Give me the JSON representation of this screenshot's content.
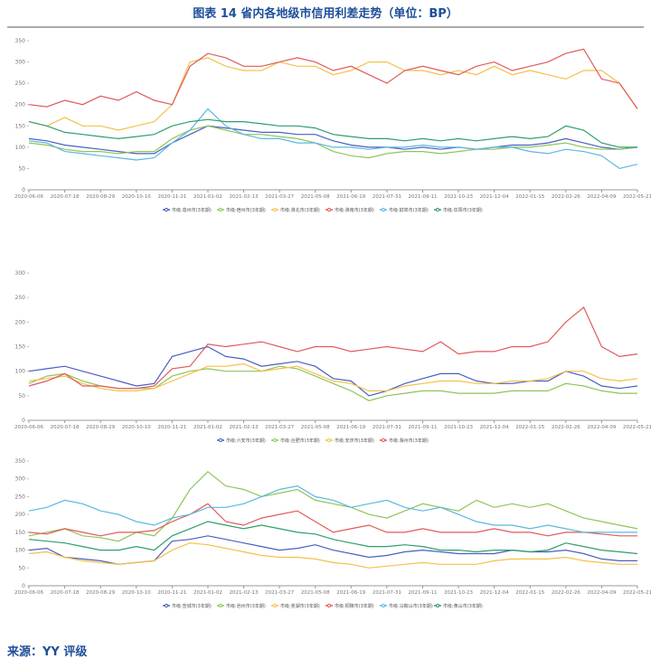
{
  "title": "图表 14 省内各地级市信用利差走势（单位：BP）",
  "source": "来源：YY 评级",
  "chart_data": [
    {
      "type": "line",
      "x": [
        "2020-06-06",
        "2020-06-27",
        "2020-07-18",
        "2020-08-08",
        "2020-08-29",
        "2020-09-19",
        "2020-10-10",
        "2020-10-31",
        "2020-11-21",
        "2020-12-12",
        "2021-01-02",
        "2021-01-23",
        "2021-02-13",
        "2021-03-06",
        "2021-03-27",
        "2021-04-17",
        "2021-05-08",
        "2021-05-29",
        "2021-06-19",
        "2021-07-10",
        "2021-07-31",
        "2021-08-21",
        "2021-09-11",
        "2021-10-02",
        "2021-10-23",
        "2021-11-13",
        "2021-12-04",
        "2021-12-25",
        "2022-01-15",
        "2022-02-05",
        "2022-02-26",
        "2022-03-19",
        "2022-04-09",
        "2022-04-30",
        "2022-05-21"
      ],
      "xticks": [
        "2020-06-06",
        "2020-07-18",
        "2020-08-29",
        "2020-10-10",
        "2020-11-21",
        "2021-01-02",
        "2021-02-13",
        "2021-03-27",
        "2021-05-08",
        "2021-06-19",
        "2021-07-31",
        "2021-09-11",
        "2021-10-23",
        "2021-12-04",
        "2022-01-15",
        "2022-02-26",
        "2022-04-09",
        "2022-05-21"
      ],
      "ylim": [
        0,
        350
      ],
      "yticks": [
        0,
        50,
        100,
        150,
        200,
        250,
        300,
        350
      ],
      "series": [
        {
          "name": "市级:亳州市(3年期)",
          "color": "#4a5fc1",
          "values": [
            120,
            115,
            105,
            100,
            95,
            90,
            85,
            85,
            110,
            130,
            150,
            145,
            140,
            135,
            135,
            130,
            130,
            115,
            105,
            100,
            100,
            95,
            100,
            95,
            100,
            95,
            100,
            105,
            105,
            110,
            120,
            110,
            100,
            95,
            100
          ]
        },
        {
          "name": "市级:宿州市(3年期)",
          "color": "#8fc45a",
          "values": [
            110,
            105,
            95,
            90,
            90,
            85,
            90,
            90,
            120,
            140,
            150,
            140,
            130,
            130,
            125,
            120,
            110,
            90,
            80,
            75,
            85,
            90,
            90,
            85,
            90,
            95,
            95,
            100,
            100,
            105,
            110,
            100,
            95,
            95,
            100
          ]
        },
        {
          "name": "市级:淮北市(3年期)",
          "color": "#f5c04a",
          "values": [
            160,
            150,
            170,
            150,
            150,
            140,
            150,
            160,
            200,
            300,
            310,
            290,
            280,
            280,
            300,
            290,
            290,
            270,
            280,
            300,
            300,
            280,
            280,
            270,
            280,
            270,
            290,
            270,
            280,
            270,
            260,
            280,
            280,
            250,
            190
          ]
        },
        {
          "name": "市级:淮南市(3年期)",
          "color": "#e05a5a",
          "values": [
            200,
            195,
            210,
            200,
            220,
            210,
            230,
            210,
            200,
            290,
            320,
            310,
            290,
            290,
            300,
            310,
            300,
            280,
            290,
            270,
            250,
            280,
            290,
            280,
            270,
            290,
            300,
            280,
            290,
            300,
            320,
            330,
            260,
            250,
            190
          ]
        },
        {
          "name": "市级:蚌埠市(3年期)",
          "color": "#5bb8e0",
          "values": [
            115,
            110,
            90,
            85,
            80,
            75,
            70,
            75,
            110,
            140,
            190,
            150,
            130,
            120,
            120,
            110,
            110,
            100,
            100,
            95,
            100,
            100,
            105,
            100,
            100,
            95,
            100,
            100,
            90,
            85,
            95,
            90,
            80,
            50,
            60
          ]
        },
        {
          "name": "市级:阜阳市(3年期)",
          "color": "#2e9e6b",
          "values": [
            160,
            150,
            135,
            130,
            125,
            120,
            125,
            130,
            150,
            160,
            165,
            160,
            160,
            155,
            150,
            150,
            145,
            130,
            125,
            120,
            120,
            115,
            120,
            115,
            120,
            115,
            120,
            125,
            120,
            125,
            150,
            140,
            110,
            100,
            100
          ]
        }
      ]
    },
    {
      "type": "line",
      "x": [
        "2020-06-06",
        "2020-06-27",
        "2020-07-18",
        "2020-08-08",
        "2020-08-29",
        "2020-09-19",
        "2020-10-10",
        "2020-10-31",
        "2020-11-21",
        "2020-12-12",
        "2021-01-02",
        "2021-01-23",
        "2021-02-13",
        "2021-03-06",
        "2021-03-27",
        "2021-04-17",
        "2021-05-08",
        "2021-05-29",
        "2021-06-19",
        "2021-07-10",
        "2021-07-31",
        "2021-08-21",
        "2021-09-11",
        "2021-10-02",
        "2021-10-23",
        "2021-11-13",
        "2021-12-04",
        "2021-12-25",
        "2022-01-15",
        "2022-02-05",
        "2022-02-26",
        "2022-03-19",
        "2022-04-09",
        "2022-04-30",
        "2022-05-21"
      ],
      "xticks": [
        "2020-06-06",
        "2020-07-18",
        "2020-08-29",
        "2020-10-10",
        "2020-11-21",
        "2021-01-02",
        "2021-02-13",
        "2021-03-27",
        "2021-05-08",
        "2021-06-19",
        "2021-07-31",
        "2021-09-11",
        "2021-10-23",
        "2021-12-04",
        "2022-01-15",
        "2022-02-26",
        "2022-04-09",
        "2022-05-21"
      ],
      "ylim": [
        0,
        300
      ],
      "yticks": [
        0,
        50,
        100,
        150,
        200,
        250,
        300
      ],
      "series": [
        {
          "name": "市级:六安市(3年期)",
          "color": "#4a5fc1",
          "values": [
            100,
            105,
            110,
            100,
            90,
            80,
            70,
            75,
            130,
            140,
            150,
            130,
            125,
            110,
            115,
            120,
            110,
            85,
            80,
            50,
            60,
            75,
            85,
            95,
            95,
            80,
            75,
            75,
            80,
            80,
            100,
            90,
            70,
            65,
            70
          ]
        },
        {
          "name": "市级:合肥市(3年期)",
          "color": "#8fc45a",
          "values": [
            75,
            90,
            95,
            80,
            70,
            65,
            65,
            65,
            90,
            100,
            105,
            100,
            100,
            100,
            110,
            105,
            90,
            75,
            60,
            40,
            50,
            55,
            60,
            60,
            55,
            55,
            55,
            60,
            60,
            60,
            75,
            70,
            60,
            55,
            55
          ]
        },
        {
          "name": "市级:安庆市(3年期)",
          "color": "#f5c04a",
          "values": [
            80,
            85,
            90,
            75,
            65,
            60,
            60,
            65,
            80,
            95,
            110,
            110,
            115,
            100,
            105,
            110,
            95,
            80,
            75,
            60,
            60,
            70,
            75,
            80,
            80,
            75,
            75,
            80,
            80,
            85,
            100,
            100,
            85,
            80,
            85
          ]
        },
        {
          "name": "市级:滁州市(3年期)",
          "color": "#e05a5a",
          "values": [
            70,
            80,
            95,
            70,
            70,
            65,
            65,
            70,
            105,
            110,
            155,
            150,
            155,
            160,
            150,
            140,
            150,
            150,
            140,
            145,
            150,
            145,
            140,
            160,
            135,
            140,
            140,
            150,
            150,
            160,
            200,
            230,
            150,
            130,
            135
          ]
        }
      ]
    },
    {
      "type": "line",
      "x": [
        "2020-06-06",
        "2020-06-27",
        "2020-07-18",
        "2020-08-08",
        "2020-08-29",
        "2020-09-19",
        "2020-10-10",
        "2020-10-31",
        "2020-11-21",
        "2020-12-12",
        "2021-01-02",
        "2021-01-23",
        "2021-02-13",
        "2021-03-06",
        "2021-03-27",
        "2021-04-17",
        "2021-05-08",
        "2021-05-29",
        "2021-06-19",
        "2021-07-10",
        "2021-07-31",
        "2021-08-21",
        "2021-09-11",
        "2021-10-02",
        "2021-10-23",
        "2021-11-13",
        "2021-12-04",
        "2021-12-25",
        "2022-01-15",
        "2022-02-05",
        "2022-02-26",
        "2022-03-19",
        "2022-04-09",
        "2022-04-30",
        "2022-05-21"
      ],
      "xticks": [
        "2020-06-06",
        "2020-07-18",
        "2020-08-29",
        "2020-10-10",
        "2020-11-21",
        "2021-01-02",
        "2021-02-13",
        "2021-03-27",
        "2021-05-08",
        "2021-06-19",
        "2021-07-31",
        "2021-09-11",
        "2021-10-23",
        "2021-12-04",
        "2022-01-15",
        "2022-02-26",
        "2022-04-09",
        "2022-05-21"
      ],
      "ylim": [
        0,
        350
      ],
      "yticks": [
        0,
        50,
        100,
        150,
        200,
        250,
        300,
        350
      ],
      "series": [
        {
          "name": "市级:宣城市(3年期)",
          "color": "#4a5fc1",
          "values": [
            100,
            105,
            80,
            75,
            70,
            60,
            65,
            70,
            125,
            130,
            140,
            130,
            120,
            110,
            100,
            105,
            115,
            100,
            90,
            80,
            85,
            95,
            100,
            95,
            90,
            90,
            90,
            100,
            95,
            95,
            100,
            90,
            75,
            70,
            70
          ]
        },
        {
          "name": "市级:池州市(3年期)",
          "color": "#8fc45a",
          "values": [
            140,
            150,
            160,
            140,
            135,
            125,
            150,
            140,
            190,
            270,
            320,
            280,
            270,
            250,
            260,
            270,
            240,
            230,
            220,
            200,
            190,
            210,
            230,
            220,
            210,
            240,
            220,
            230,
            220,
            230,
            210,
            190,
            180,
            170,
            160
          ]
        },
        {
          "name": "市级:芜湖市(3年期)",
          "color": "#f5c04a",
          "values": [
            90,
            95,
            80,
            70,
            65,
            60,
            65,
            70,
            100,
            120,
            115,
            105,
            95,
            85,
            80,
            80,
            75,
            65,
            60,
            50,
            55,
            60,
            65,
            60,
            60,
            60,
            70,
            75,
            75,
            75,
            80,
            70,
            65,
            60,
            60
          ]
        },
        {
          "name": "市级:铜陵市(3年期)",
          "color": "#e05a5a",
          "values": [
            150,
            145,
            160,
            150,
            140,
            150,
            150,
            155,
            180,
            200,
            230,
            180,
            170,
            190,
            200,
            210,
            180,
            150,
            160,
            170,
            150,
            150,
            160,
            150,
            150,
            150,
            160,
            150,
            150,
            140,
            150,
            150,
            145,
            140,
            140
          ]
        },
        {
          "name": "市级:马鞍山市(3年期)",
          "color": "#5bb8e0",
          "values": [
            210,
            220,
            240,
            230,
            210,
            200,
            180,
            170,
            190,
            200,
            220,
            220,
            230,
            250,
            270,
            280,
            250,
            240,
            220,
            230,
            240,
            220,
            210,
            220,
            200,
            180,
            170,
            170,
            160,
            170,
            160,
            150,
            150,
            150,
            150
          ]
        },
        {
          "name": "市级:黄山市(3年期)",
          "color": "#2e9e6b",
          "values": [
            130,
            125,
            120,
            110,
            100,
            100,
            110,
            100,
            140,
            160,
            180,
            170,
            160,
            170,
            160,
            150,
            145,
            130,
            120,
            110,
            110,
            115,
            110,
            100,
            100,
            95,
            100,
            100,
            95,
            100,
            120,
            110,
            100,
            95,
            90
          ]
        }
      ]
    }
  ]
}
